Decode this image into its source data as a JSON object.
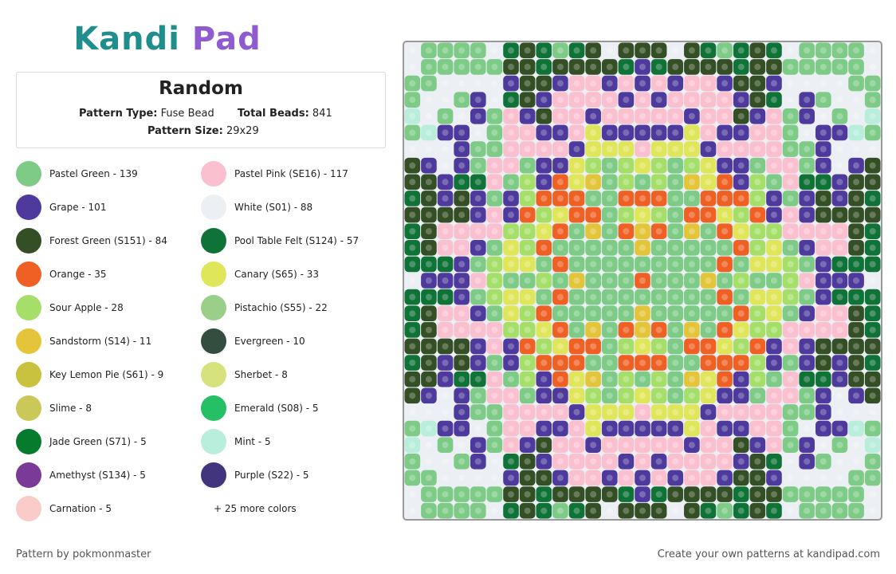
{
  "header": {
    "logo": "Kandi Pad"
  },
  "pattern": {
    "title": "Random",
    "type_label": "Pattern Type:",
    "type_value": "Fuse Bead",
    "beads_label": "Total Beads:",
    "beads_value": "841",
    "size_label": "Pattern Size:",
    "size_value": "29x29"
  },
  "legend": {
    "items": [
      {
        "label": "Pastel Green - 139",
        "color": "#7dcb87"
      },
      {
        "label": "Pastel Pink (SE16) - 117",
        "color": "#fbc0d0"
      },
      {
        "label": "Grape - 101",
        "color": "#4e3a9d"
      },
      {
        "label": "White (S01) - 88",
        "color": "#eceff4"
      },
      {
        "label": "Forest Green (S151) - 84",
        "color": "#344f25"
      },
      {
        "label": "Pool Table Felt (S124) - 57",
        "color": "#0f7237"
      },
      {
        "label": "Orange - 35",
        "color": "#ef6024"
      },
      {
        "label": "Canary (S65) - 33",
        "color": "#e0e65a"
      },
      {
        "label": "Sour Apple - 28",
        "color": "#a5df6a"
      },
      {
        "label": "Pistachio (S55) - 22",
        "color": "#99cf89"
      },
      {
        "label": "Sandstorm (S14) - 11",
        "color": "#e4c53a"
      },
      {
        "label": "Evergreen - 10",
        "color": "#334d3f"
      },
      {
        "label": "Key Lemon Pie (S61) - 9",
        "color": "#c9c23e"
      },
      {
        "label": "Sherbet - 8",
        "color": "#d6e27c"
      },
      {
        "label": "Slime - 8",
        "color": "#cbc85a"
      },
      {
        "label": "Emerald (S08) - 5",
        "color": "#25c066"
      },
      {
        "label": "Jade Green (S71) - 5",
        "color": "#067b2e"
      },
      {
        "label": "Mint - 5",
        "color": "#b8eedb"
      },
      {
        "label": "Amethyst (S134) - 5",
        "color": "#7a3a98"
      },
      {
        "label": "Purple (S22) - 5",
        "color": "#42357e"
      },
      {
        "label": "Carnation - 5",
        "color": "#f9cbc9"
      }
    ],
    "more": "+ 25 more colors"
  },
  "footer": {
    "left": "Pattern by pokmonmaster",
    "right": "Create your own patterns at kandipad.com"
  }
}
